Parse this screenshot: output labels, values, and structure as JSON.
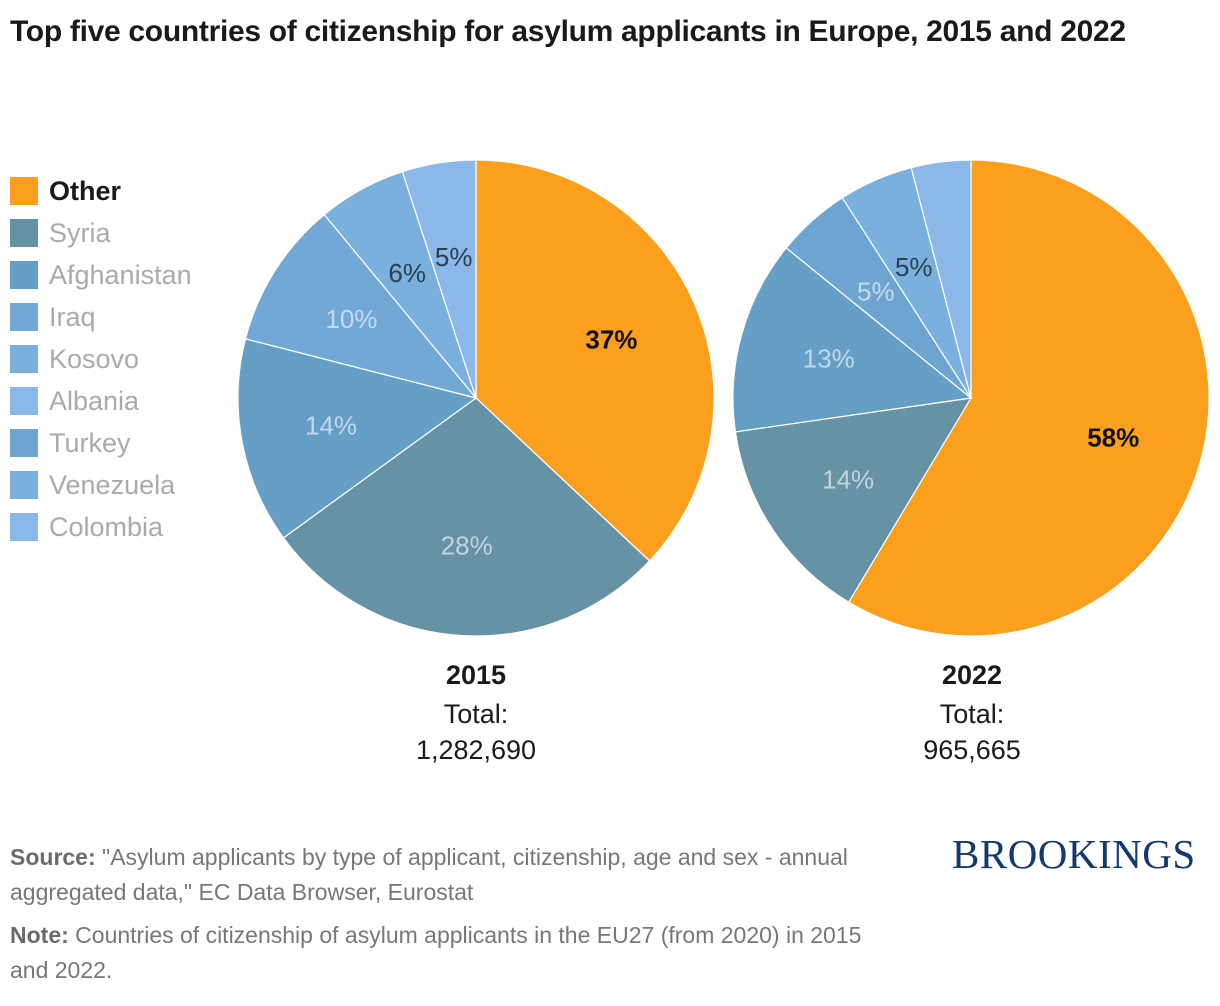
{
  "title": "Top five countries of citizenship for asylum applicants in Europe, 2015 and 2022",
  "legend": [
    {
      "label": "Other",
      "color": "#FB9F1E",
      "active": true
    },
    {
      "label": "Syria",
      "color": "#6692A6",
      "active": false
    },
    {
      "label": "Afghanistan",
      "color": "#669FC6",
      "active": false
    },
    {
      "label": "Iraq",
      "color": "#71A8D5",
      "active": false
    },
    {
      "label": "Kosovo",
      "color": "#7AB0DC",
      "active": false
    },
    {
      "label": "Albania",
      "color": "#8BB8E8",
      "active": false
    },
    {
      "label": "Turkey",
      "color": "#6DA5D0",
      "active": false
    },
    {
      "label": "Venezuela",
      "color": "#79B0DD",
      "active": false
    },
    {
      "label": "Colombia",
      "color": "#8BB8E8",
      "active": false
    }
  ],
  "chart_data": [
    {
      "type": "pie",
      "title": "2015",
      "total_label": "Total:",
      "total": "1,282,690",
      "slices": [
        {
          "name": "Other",
          "value": 37,
          "label": "37%",
          "color": "#FB9F1E",
          "label_color": "#111111",
          "label_bold": true
        },
        {
          "name": "Syria",
          "value": 28,
          "label": "28%",
          "color": "#6692A6",
          "label_color": "#c3d4dc",
          "label_bold": false
        },
        {
          "name": "Afghanistan",
          "value": 14,
          "label": "14%",
          "color": "#669FC6",
          "label_color": "#c3d8e8",
          "label_bold": false
        },
        {
          "name": "Iraq",
          "value": 10,
          "label": "10%",
          "color": "#71A8D5",
          "label_color": "#c6dcee",
          "label_bold": false
        },
        {
          "name": "Kosovo",
          "value": 6,
          "label": "6%",
          "color": "#7AB0DC",
          "label_color": "#2b3f52",
          "label_bold": false
        },
        {
          "name": "Albania",
          "value": 5,
          "label": "5%",
          "color": "#8BB8E8",
          "label_color": "#2b3f52",
          "label_bold": false
        }
      ]
    },
    {
      "type": "pie",
      "title": "2022",
      "total_label": "Total:",
      "total": "965,665",
      "slices": [
        {
          "name": "Other",
          "value": 58,
          "label": "58%",
          "color": "#FB9F1E",
          "label_color": "#111111",
          "label_bold": true
        },
        {
          "name": "Syria",
          "value": 14,
          "label": "14%",
          "color": "#6692A6",
          "label_color": "#c3d4dc",
          "label_bold": false
        },
        {
          "name": "Afghanistan",
          "value": 13,
          "label": "13%",
          "color": "#669FC6",
          "label_color": "#c3d8e8",
          "label_bold": false
        },
        {
          "name": "Turkey",
          "value": 5,
          "label": "5%",
          "color": "#6DA5D0",
          "label_color": "#c6dcee",
          "label_bold": false
        },
        {
          "name": "Venezuela",
          "value": 5,
          "label": "5%",
          "color": "#79B0DD",
          "label_color": "#2b3f52",
          "label_bold": false
        },
        {
          "name": "Colombia",
          "value": 4,
          "label": "",
          "color": "#8BB8E8",
          "label_color": "#2b3f52",
          "label_bold": false
        }
      ]
    }
  ],
  "footer": {
    "source_label": "Source:",
    "source_text": " \"Asylum applicants by type of applicant, citizenship, age and sex - annual aggregated data,\" EC Data Browser, Eurostat",
    "note_label": "Note:",
    "note_text": " Countries of citizenship of asylum applicants in the EU27 (from 2020) in 2015 and 2022."
  },
  "brand": "BROOKINGS"
}
